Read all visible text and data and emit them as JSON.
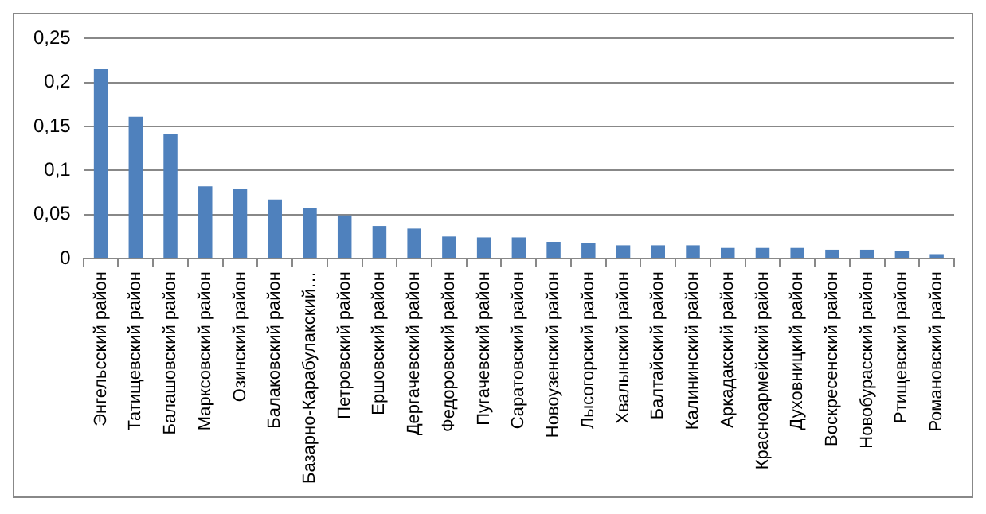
{
  "chart_data": {
    "type": "bar",
    "categories": [
      "Энгельсский район",
      "Татищевский район",
      "Балашовский район",
      "Марксовский район",
      "Озинский район",
      "Балаковский район",
      "Базарно-Карабулакский…",
      "Петровский район",
      "Ершовский район",
      "Дергачевский район",
      "Федоровский район",
      "Пугачевский район",
      "Саратовский район",
      "Новоузенский район",
      "Лысогорский район",
      "Хвалынский район",
      "Балтайский район",
      "Калининский район",
      "Аркадакский район",
      "Красноармейский район",
      "Духовницкий район",
      "Воскресенский район",
      "Новобурасский район",
      "Ртищевский район",
      "Романовский район"
    ],
    "values": [
      0.215,
      0.161,
      0.141,
      0.082,
      0.079,
      0.067,
      0.057,
      0.049,
      0.037,
      0.034,
      0.025,
      0.024,
      0.024,
      0.019,
      0.018,
      0.015,
      0.015,
      0.015,
      0.012,
      0.012,
      0.012,
      0.01,
      0.01,
      0.009,
      0.005
    ],
    "color": "#4f81bd",
    "ylim": [
      0,
      0.25
    ],
    "yticks": [
      0,
      {
        "value": 0.05,
        "label": "0,05"
      },
      {
        "value": 0.1,
        "label": "0,1"
      },
      {
        "value": 0.15,
        "label": "0,15"
      },
      {
        "value": 0.2,
        "label": "0,2"
      },
      {
        "value": 0.25,
        "label": "0,25"
      }
    ],
    "grid": "y",
    "legend": false
  }
}
